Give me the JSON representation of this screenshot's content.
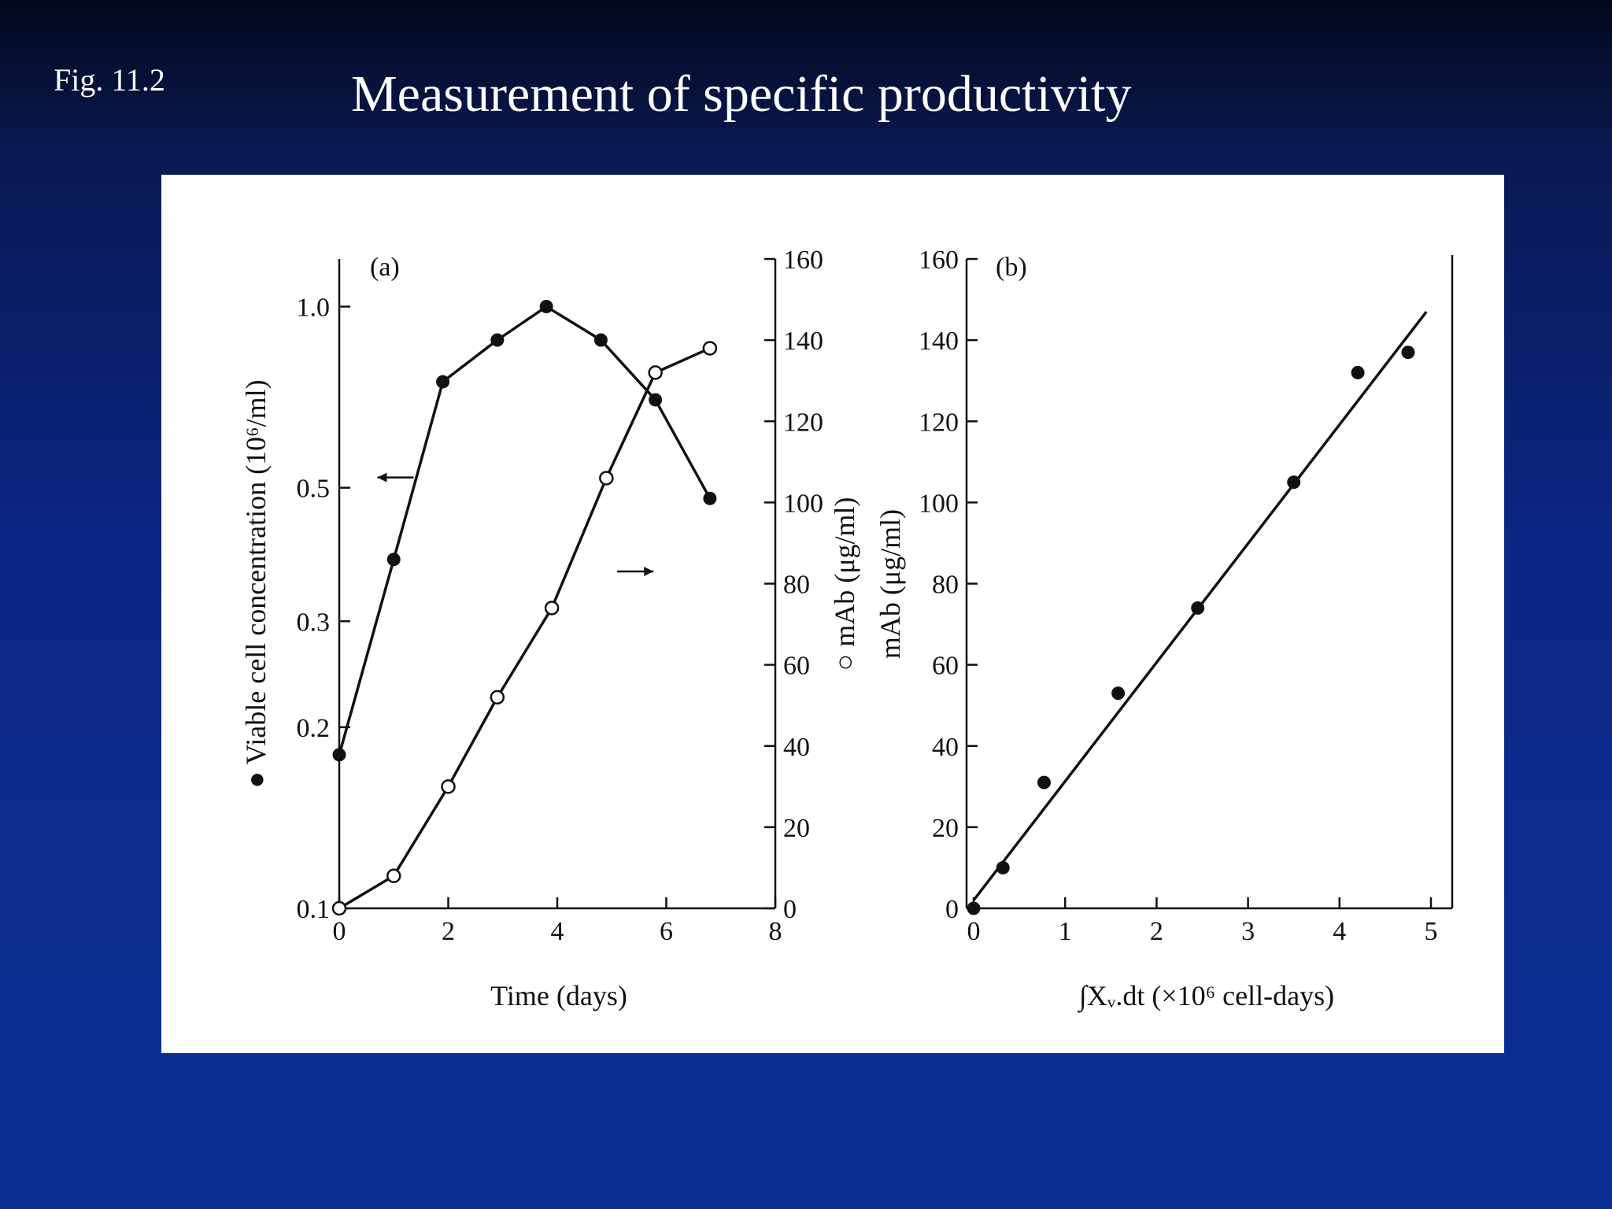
{
  "slide": {
    "fig_label": "Fig. 11.2",
    "title": "Measurement of specific productivity"
  },
  "chart_data": [
    {
      "type": "line",
      "panel_label": "(a)",
      "xlabel": "Time (days)",
      "xlim": [
        0,
        8
      ],
      "xticks": [
        0,
        2,
        4,
        6,
        8
      ],
      "ylabel_left": "Viable cell concentration (10⁶/ml)",
      "ylabel_left_marker": "●",
      "ylim_left": [
        0.1,
        1.2
      ],
      "yscale_left": "log",
      "yticks_left": [
        0.1,
        0.2,
        0.3,
        0.5,
        1.0
      ],
      "yticklabels_left": [
        "0.1",
        "0.2",
        "0.3",
        "0.5",
        "1.0"
      ],
      "ylabel_right": "mAb (μg/ml)",
      "ylabel_right_marker": "○",
      "ylim_right": [
        0,
        160
      ],
      "yticks_right": [
        0,
        20,
        40,
        60,
        80,
        100,
        120,
        140,
        160
      ],
      "series": [
        {
          "marker": "filled-circle",
          "axis": "left",
          "x": [
            0,
            1,
            1.9,
            2.9,
            3.8,
            4.8,
            5.8,
            6.8
          ],
          "values": [
            0.18,
            0.38,
            0.75,
            0.88,
            1.0,
            0.88,
            0.7,
            0.48
          ]
        },
        {
          "marker": "open-circle",
          "axis": "right",
          "x": [
            0,
            1,
            2,
            2.9,
            3.9,
            4.9,
            5.8,
            6.8
          ],
          "values": [
            0,
            8,
            30,
            52,
            74,
            106,
            132,
            138
          ]
        }
      ],
      "arrows": [
        {
          "direction": "left",
          "x": 0.7,
          "y": 0.52
        },
        {
          "direction": "right",
          "x": 5.1,
          "y": 83
        }
      ]
    },
    {
      "type": "scatter",
      "panel_label": "(b)",
      "xlabel": "∫Xᵥ.dt (×10⁶ cell-days)",
      "xlim": [
        0,
        5
      ],
      "xticks": [
        0,
        1,
        2,
        3,
        4,
        5
      ],
      "ylabel": "mAb (μg/ml)",
      "ylim": [
        0,
        160
      ],
      "yticks": [
        0,
        20,
        40,
        60,
        80,
        100,
        120,
        140,
        160
      ],
      "series": [
        {
          "marker": "filled-circle",
          "x": [
            0,
            0.32,
            0.77,
            1.58,
            2.45,
            3.5,
            4.2,
            4.75
          ],
          "values": [
            0,
            10,
            31,
            53,
            74,
            105,
            132,
            137
          ]
        }
      ],
      "fit_line": {
        "x": [
          0,
          4.95
        ],
        "y": [
          2,
          147
        ]
      }
    }
  ]
}
